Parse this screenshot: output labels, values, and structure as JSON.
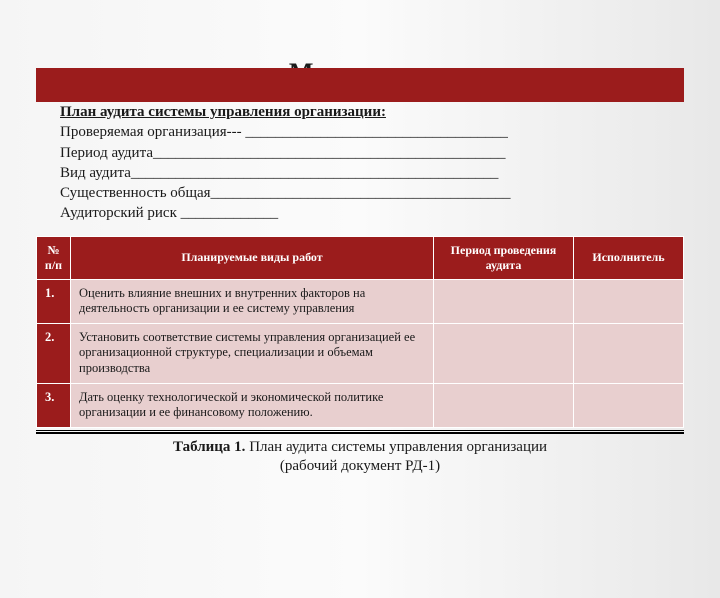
{
  "title": "Методика…",
  "intro": {
    "line1_bold": "План аудита системы управления организации:",
    "line2": "Проверяемая организация--- ___________________________________",
    "line3": "Период аудита_______________________________________________",
    "line4": "Вид аудита_________________________________________________",
    "line5": "Существенность общая________________________________________",
    "line6": "Аудиторский риск _____________"
  },
  "table": {
    "headers": {
      "num": "№ п/п",
      "work": "Планируемые виды работ",
      "period": "Период проведения аудита",
      "exec": "Исполнитель"
    },
    "rows": [
      {
        "num": "1.",
        "work": "Оценить влияние внешних и внутренних факторов на деятельность организации и ее систему управления"
      },
      {
        "num": "2.",
        "work": "Установить соответствие системы управления организацией ее организационной структуре, специализации и объемам производства"
      },
      {
        "num": "3.",
        "work": "Дать оценку технологической и экономической политике организации и ее финансовому положению."
      }
    ]
  },
  "caption": {
    "bold": "Таблица 1.",
    "rest1": " План аудита системы управления организации",
    "rest2": "(рабочий документ РД-1)"
  },
  "colors": {
    "accent": "#9b1c1c",
    "cell_bg": "#e8cfcf"
  }
}
